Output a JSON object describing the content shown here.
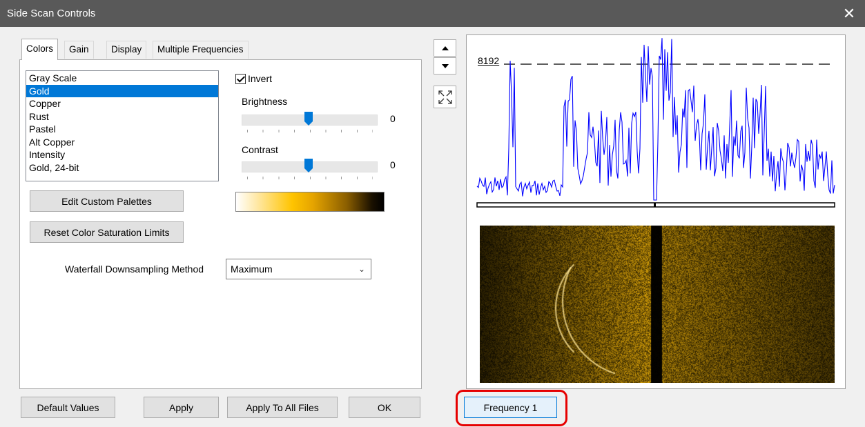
{
  "window": {
    "title": "Side Scan Controls",
    "close_glyph": "✕"
  },
  "tabs": [
    {
      "label": "Colors",
      "active": true
    },
    {
      "label": "Gain"
    },
    {
      "label": "Display"
    },
    {
      "label": "Multiple Frequencies"
    }
  ],
  "palette_list": {
    "items": [
      "Gray Scale",
      "Gold",
      "Copper",
      "Rust",
      "Pastel",
      "Alt Copper",
      "Intensity",
      "Gold, 24-bit"
    ],
    "selected": "Gold"
  },
  "invert": {
    "label": "Invert",
    "checked": true
  },
  "brightness": {
    "label": "Brightness",
    "value": "0",
    "level": 0.5
  },
  "contrast": {
    "label": "Contrast",
    "value": "0",
    "level": 0.5
  },
  "buttons": {
    "edit_custom_palettes": "Edit Custom Palettes",
    "reset_saturation": "Reset Color Saturation Limits",
    "default_values": "Default Values",
    "apply": "Apply",
    "apply_all": "Apply To All Files",
    "ok": "OK"
  },
  "downsampling": {
    "label": "Waterfall Downsampling Method",
    "value": "Maximum"
  },
  "viewer": {
    "plot_label": "8192",
    "frequency_button": "Frequency 1"
  },
  "icons": {
    "close": "close-icon",
    "up": "arrow-up-icon",
    "down": "arrow-down-icon",
    "fit": "expand-icon",
    "check": "checkmark-icon",
    "chevron": "chevron-down-icon"
  },
  "colors": {
    "titlebar": "#595959",
    "selection": "#0078d7",
    "plot_line": "#0000ff",
    "highlight": "#e60000"
  }
}
